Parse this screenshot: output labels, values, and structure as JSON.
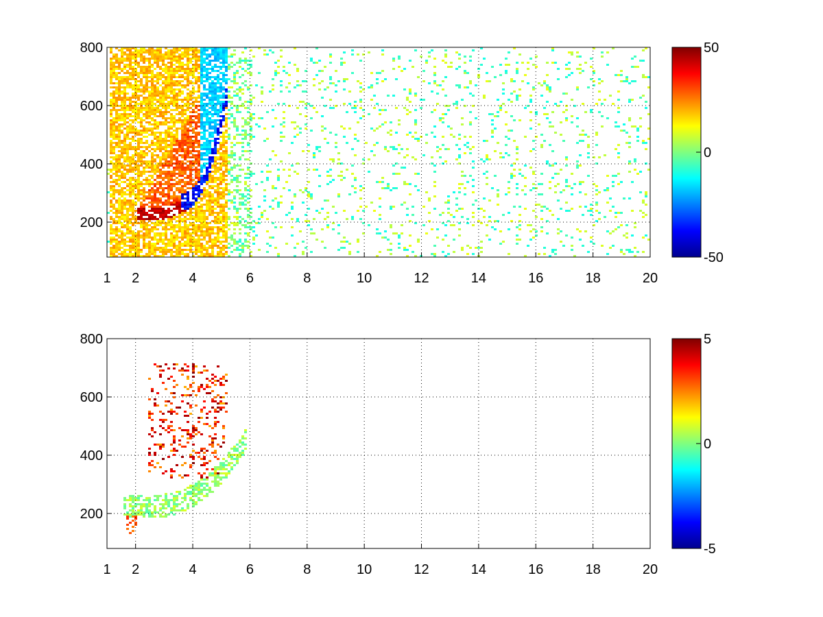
{
  "chart_data": [
    {
      "type": "heatmap",
      "title": "",
      "xlabel": "",
      "ylabel": "",
      "x_ticks": [
        "1",
        "2",
        "4",
        "6",
        "8",
        "10",
        "12",
        "14",
        "16",
        "18",
        "20"
      ],
      "y_ticks": [
        "200",
        "400",
        "600",
        "800"
      ],
      "xlim": [
        1,
        20
      ],
      "ylim": [
        80,
        800
      ],
      "x_tick_values": [
        1,
        2,
        4,
        6,
        8,
        10,
        12,
        14,
        16,
        18,
        20
      ],
      "y_tick_values": [
        200,
        400,
        600,
        800
      ],
      "grid": true,
      "colormap": "jet",
      "color_range": [
        -50,
        50
      ],
      "colorbar_ticks": [
        "50",
        "0",
        "-50"
      ],
      "colorbar_tick_values": [
        50,
        0,
        -50
      ],
      "features": [
        {
          "description_value": "positive ridge",
          "x": [
            2.2,
            2.6,
            3.0,
            3.4,
            3.8,
            4.0
          ],
          "y": [
            240,
            235,
            250,
            270,
            300,
            330
          ],
          "value": 45
        },
        {
          "description_value": "negative ridge",
          "x": [
            3.6,
            4.0,
            4.4,
            4.8,
            5.0,
            5.1
          ],
          "y": [
            275,
            290,
            310,
            360,
            430,
            560
          ],
          "value": -45
        },
        {
          "description_value": "positive broad band",
          "x": [
            2.0,
            2.5,
            3.0,
            3.5,
            4.0,
            4.5
          ],
          "y": [
            160,
            300,
            420,
            520,
            620,
            700
          ],
          "value": 20
        }
      ]
    },
    {
      "type": "heatmap",
      "title": "",
      "xlabel": "",
      "ylabel": "",
      "x_ticks": [
        "1",
        "2",
        "4",
        "6",
        "8",
        "10",
        "12",
        "14",
        "16",
        "18",
        "20"
      ],
      "y_ticks": [
        "200",
        "400",
        "600",
        "800"
      ],
      "xlim": [
        1,
        20
      ],
      "ylim": [
        80,
        800
      ],
      "x_tick_values": [
        1,
        2,
        4,
        6,
        8,
        10,
        12,
        14,
        16,
        18,
        20
      ],
      "y_tick_values": [
        200,
        400,
        600,
        800
      ],
      "grid": true,
      "colormap": "jet",
      "color_range": [
        -5,
        5
      ],
      "colorbar_ticks": [
        "5",
        "0",
        "-5"
      ],
      "colorbar_tick_values": [
        5,
        0,
        -5
      ],
      "features": [
        {
          "description_value": "low band",
          "x": [
            2.0,
            2.5,
            3.0,
            3.5,
            4.0,
            4.5
          ],
          "y": [
            250,
            240,
            245,
            260,
            280,
            310
          ],
          "value": 0.5
        },
        {
          "description_value": "high cluster",
          "x": [
            3.2,
            3.5,
            3.8,
            4.0,
            4.4
          ],
          "y": [
            380,
            450,
            550,
            600,
            650
          ],
          "value": 4.5
        },
        {
          "description_value": "lower red patch",
          "x": [
            1.6,
            1.8
          ],
          "y": [
            160,
            180
          ],
          "value": 3
        }
      ]
    }
  ]
}
